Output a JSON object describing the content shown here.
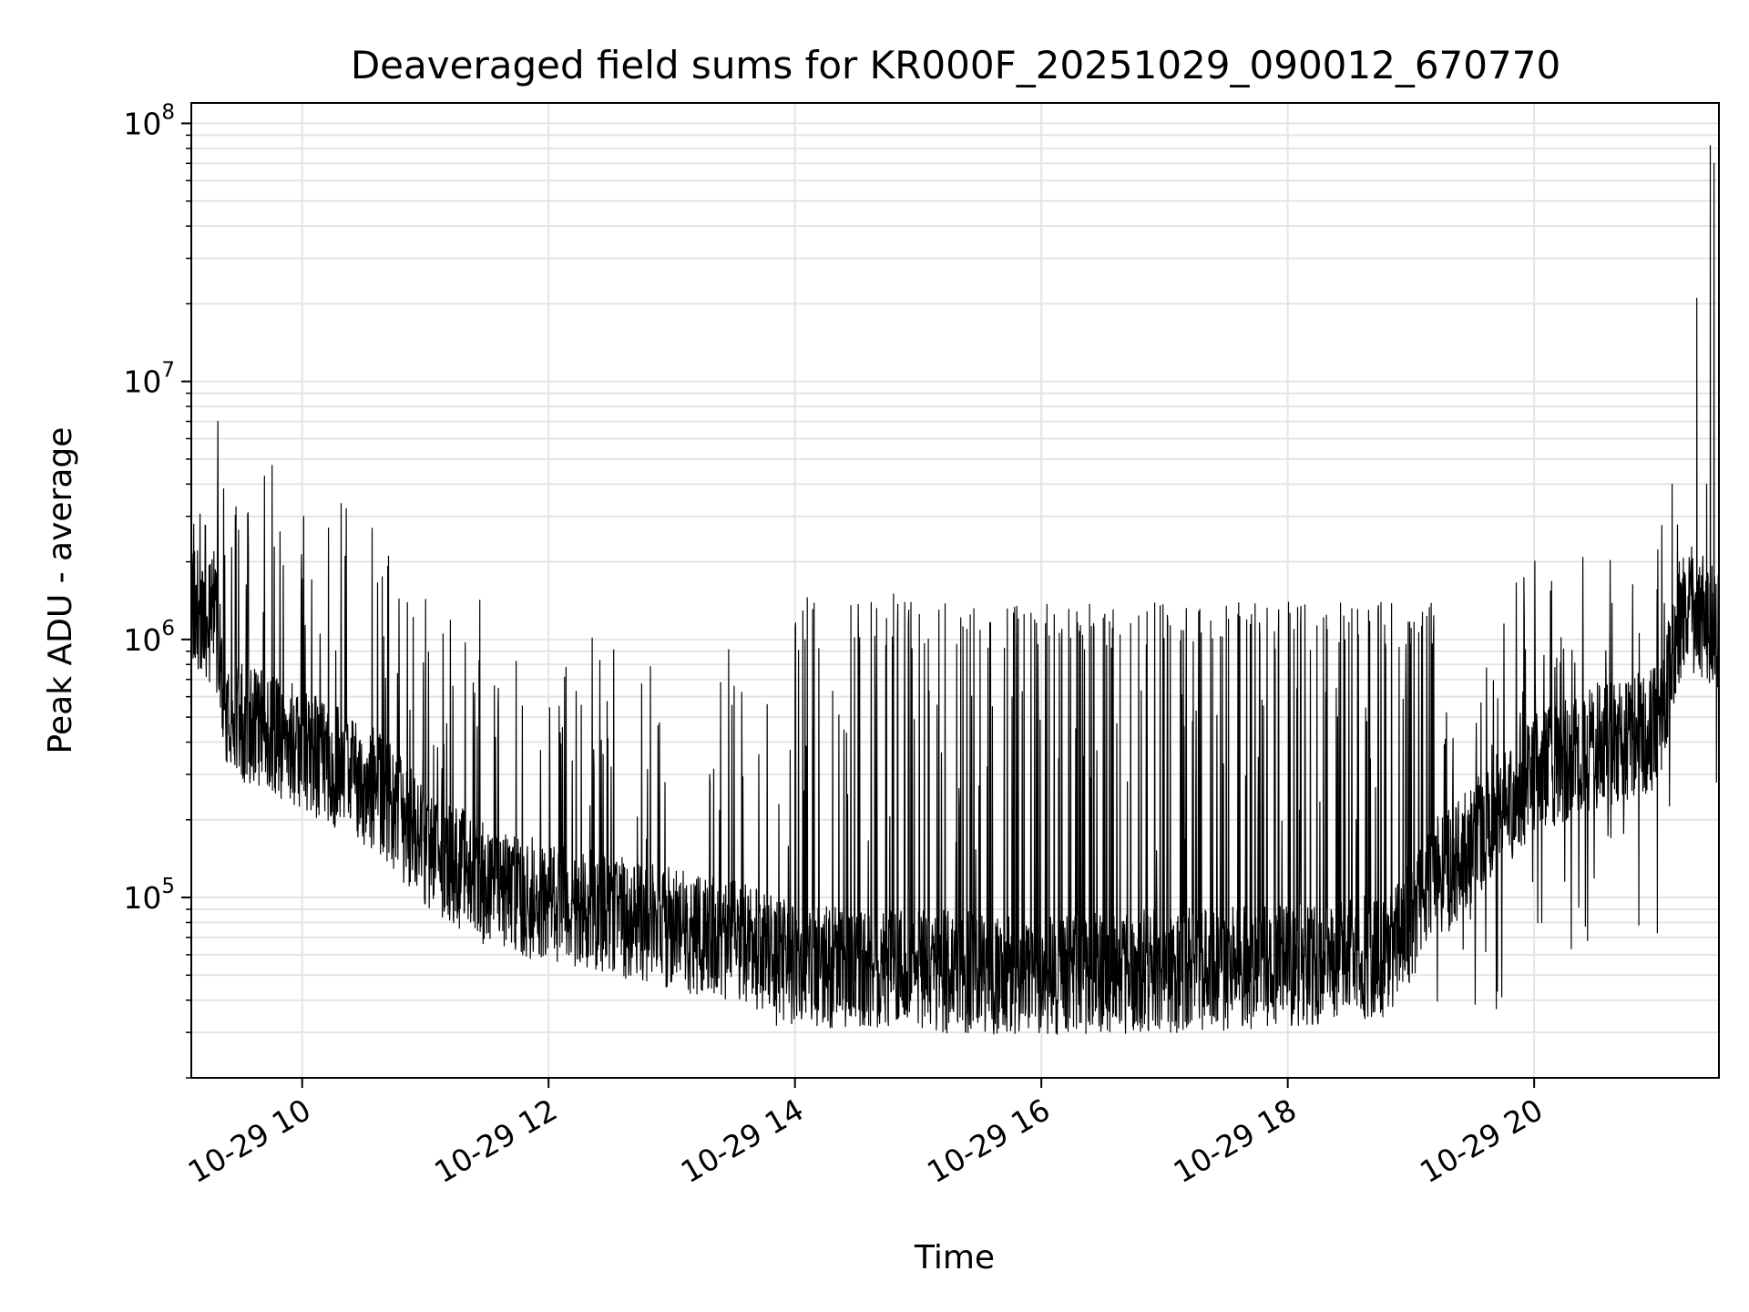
{
  "chart_data": {
    "type": "line",
    "title": "Deaveraged field sums for KR000F_20251029_090012_670770",
    "xlabel": "Time",
    "ylabel": "Peak ADU - average",
    "yscale": "log",
    "x_unit": "hours (local time, 2025-10-29)",
    "xlim": [
      9.1,
      21.5
    ],
    "ylim": [
      20000,
      120000000
    ],
    "x_ticks": [
      {
        "value": 10,
        "label": "10-29 10"
      },
      {
        "value": 12,
        "label": "10-29 12"
      },
      {
        "value": 14,
        "label": "10-29 14"
      },
      {
        "value": 16,
        "label": "10-29 16"
      },
      {
        "value": 18,
        "label": "10-29 18"
      },
      {
        "value": 20,
        "label": "10-29 20"
      }
    ],
    "y_ticks": [
      {
        "value": 100000,
        "base": "10",
        "exp": "5"
      },
      {
        "value": 1000000,
        "base": "10",
        "exp": "6"
      },
      {
        "value": 10000000,
        "base": "10",
        "exp": "7"
      },
      {
        "value": 100000000,
        "base": "10",
        "exp": "8"
      }
    ],
    "grid": true,
    "line_color": "#000000",
    "baseline_trend": [
      {
        "x": 9.1,
        "y": 1400000
      },
      {
        "x": 9.3,
        "y": 1100000
      },
      {
        "x": 9.4,
        "y": 500000
      },
      {
        "x": 10.0,
        "y": 380000
      },
      {
        "x": 10.6,
        "y": 260000
      },
      {
        "x": 11.0,
        "y": 160000
      },
      {
        "x": 11.5,
        "y": 110000
      },
      {
        "x": 12.5,
        "y": 85000
      },
      {
        "x": 13.5,
        "y": 68000
      },
      {
        "x": 14.0,
        "y": 55000
      },
      {
        "x": 15.0,
        "y": 52000
      },
      {
        "x": 16.0,
        "y": 50000
      },
      {
        "x": 17.0,
        "y": 52000
      },
      {
        "x": 18.0,
        "y": 54000
      },
      {
        "x": 18.8,
        "y": 60000
      },
      {
        "x": 19.2,
        "y": 110000
      },
      {
        "x": 19.6,
        "y": 190000
      },
      {
        "x": 20.0,
        "y": 300000
      },
      {
        "x": 20.5,
        "y": 380000
      },
      {
        "x": 21.0,
        "y": 450000
      },
      {
        "x": 21.2,
        "y": 1300000
      },
      {
        "x": 21.5,
        "y": 1100000
      }
    ],
    "notable_points": [
      {
        "x": 9.12,
        "y": 2800000
      },
      {
        "x": 10.65,
        "y": 1750000
      },
      {
        "x": 13.85,
        "y": 32000
      },
      {
        "x": 14.1,
        "y": 1450000
      },
      {
        "x": 14.8,
        "y": 1500000
      },
      {
        "x": 17.1,
        "y": 30000
      },
      {
        "x": 21.0,
        "y": 73000
      },
      {
        "x": 21.12,
        "y": 4000000
      },
      {
        "x": 21.32,
        "y": 21000000
      },
      {
        "x": 21.4,
        "y": 4000000
      },
      {
        "x": 21.43,
        "y": 82000000
      },
      {
        "x": 21.46,
        "y": 70000000
      },
      {
        "x": 21.48,
        "y": 280000
      }
    ]
  }
}
